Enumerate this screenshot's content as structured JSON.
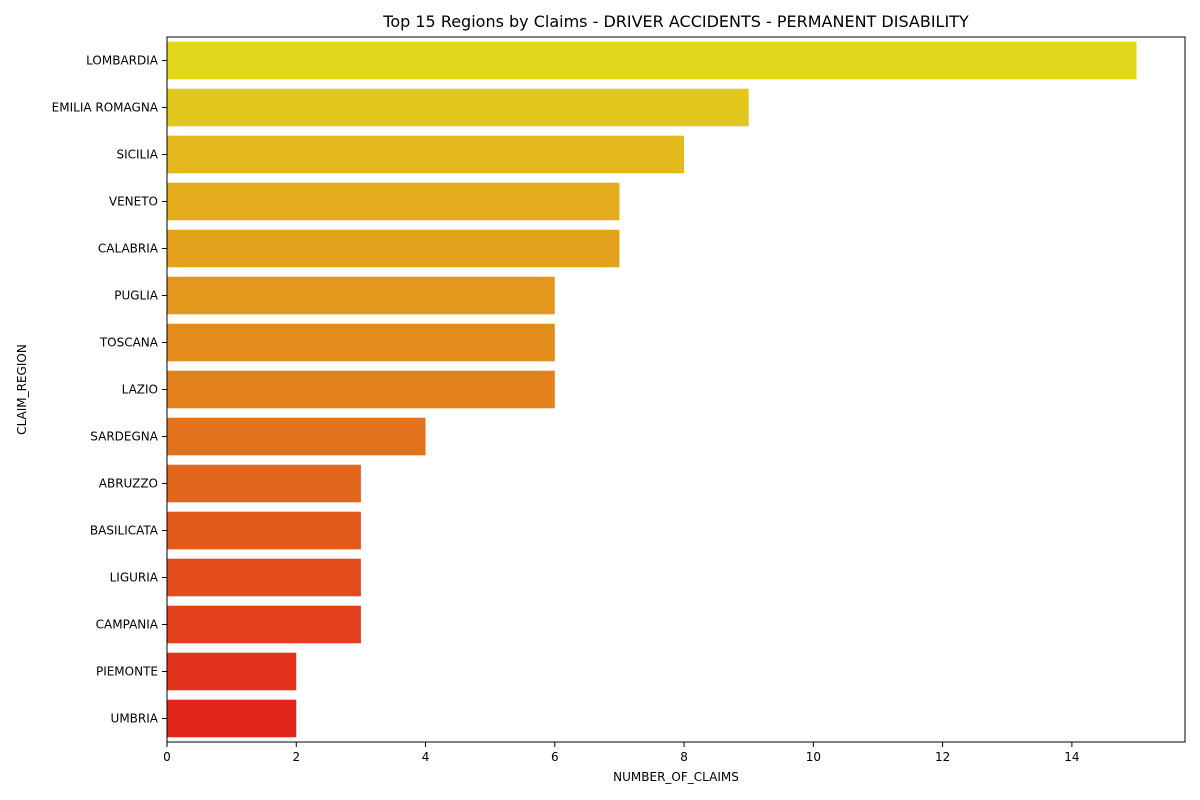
{
  "chart_data": {
    "type": "bar",
    "orientation": "horizontal",
    "title": "Top 15 Regions by Claims - DRIVER ACCIDENTS - PERMANENT DISABILITY",
    "xlabel": "NUMBER_OF_CLAIMS",
    "ylabel": "CLAIM_REGION",
    "xlim": [
      0,
      15.75
    ],
    "xticks": [
      0,
      2,
      4,
      6,
      8,
      10,
      12,
      14
    ],
    "grid": false,
    "categories": [
      "LOMBARDIA",
      "EMILIA ROMAGNA",
      "SICILIA",
      "VENETO",
      "CALABRIA",
      "PUGLIA",
      "TOSCANA",
      "LAZIO",
      "SARDEGNA",
      "ABRUZZO",
      "BASILICATA",
      "LIGURIA",
      "CAMPANIA",
      "PIEMONTE",
      "UMBRIA"
    ],
    "values": [
      15,
      9,
      8,
      7,
      7,
      6,
      6,
      6,
      4,
      3,
      3,
      3,
      3,
      2,
      2
    ],
    "colors": [
      "#e2d71c",
      "#e2c71c",
      "#e2b81c",
      "#e2ac1c",
      "#e2a21c",
      "#e2981c",
      "#e28c1c",
      "#e2801c",
      "#e2731c",
      "#e2661c",
      "#e2591c",
      "#e24c1c",
      "#e2401c",
      "#e2321c",
      "#e2261c"
    ]
  }
}
